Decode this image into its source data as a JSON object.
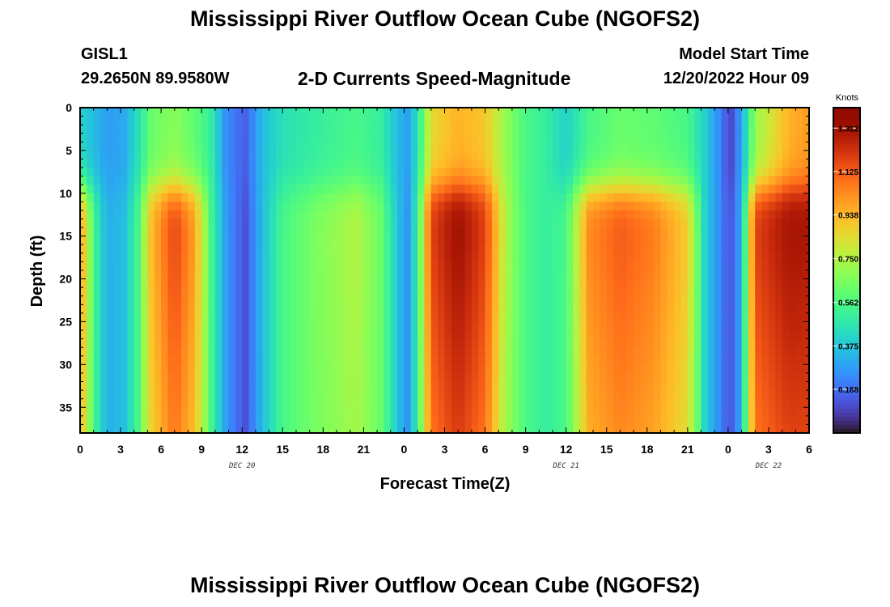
{
  "header": {
    "title": "Mississippi River Outflow Ocean Cube (NGOFS2)",
    "station": "GISL1",
    "location": "29.2650N  89.9580W",
    "subtitle": "2-D Currents Speed-Magnitude",
    "model_start_label": "Model Start Time",
    "model_start_time": "12/20/2022 Hour 09"
  },
  "footer": {
    "title": "Mississippi River Outflow Ocean Cube (NGOFS2)"
  },
  "chart_data": {
    "type": "heatmap",
    "xlabel": "Forecast Time(Z)",
    "ylabel": "Depth (ft)",
    "x_unit": "forecast hour (Z)",
    "xlim": [
      0,
      54
    ],
    "ylim": [
      38,
      0
    ],
    "x_ticks": [
      {
        "x": 0,
        "label": "0"
      },
      {
        "x": 3,
        "label": "3"
      },
      {
        "x": 6,
        "label": "6"
      },
      {
        "x": 9,
        "label": "9"
      },
      {
        "x": 12,
        "label": "12"
      },
      {
        "x": 15,
        "label": "15"
      },
      {
        "x": 18,
        "label": "18"
      },
      {
        "x": 21,
        "label": "21"
      },
      {
        "x": 24,
        "label": "0"
      },
      {
        "x": 27,
        "label": "3"
      },
      {
        "x": 30,
        "label": "6"
      },
      {
        "x": 33,
        "label": "9"
      },
      {
        "x": 36,
        "label": "12"
      },
      {
        "x": 39,
        "label": "15"
      },
      {
        "x": 42,
        "label": "18"
      },
      {
        "x": 45,
        "label": "21"
      },
      {
        "x": 48,
        "label": "0"
      },
      {
        "x": 51,
        "label": "3"
      },
      {
        "x": 54,
        "label": "6"
      }
    ],
    "date_labels": [
      {
        "x": 12,
        "label": "DEC 20"
      },
      {
        "x": 36,
        "label": "DEC 21"
      },
      {
        "x": 51,
        "label": "DEC 22"
      }
    ],
    "y_ticks": [
      0,
      5,
      10,
      15,
      20,
      25,
      30,
      35
    ],
    "colorbar": {
      "unit": "Knots",
      "range": [
        0.0,
        1.4
      ],
      "ticks": [
        1.312,
        1.125,
        0.938,
        0.75,
        0.562,
        0.375,
        0.188
      ],
      "tick_labels": [
        "1.312",
        "1.125",
        "0.938",
        "0.750",
        "0.562",
        "0.375",
        "0.188"
      ],
      "colormap": "turbo"
    },
    "speed_field": {
      "description_units": "knots",
      "time_columns": [
        {
          "x": 0.2,
          "surface": 0.4,
          "deep": 0.95
        },
        {
          "x": 1.0,
          "surface": 0.35,
          "deep": 0.55
        },
        {
          "x": 2.0,
          "surface": 0.28,
          "deep": 0.32
        },
        {
          "x": 3.2,
          "surface": 0.3,
          "deep": 0.35
        },
        {
          "x": 4.3,
          "surface": 0.45,
          "deep": 0.55
        },
        {
          "x": 5.3,
          "surface": 0.62,
          "deep": 0.95
        },
        {
          "x": 7.0,
          "surface": 0.68,
          "deep": 1.2
        },
        {
          "x": 8.5,
          "surface": 0.6,
          "deep": 1.0
        },
        {
          "x": 9.7,
          "surface": 0.5,
          "deep": 0.55
        },
        {
          "x": 10.8,
          "surface": 0.25,
          "deep": 0.28
        },
        {
          "x": 12.2,
          "surface": 0.15,
          "deep": 0.12
        },
        {
          "x": 13.5,
          "surface": 0.35,
          "deep": 0.35
        },
        {
          "x": 15.0,
          "surface": 0.45,
          "deep": 0.55
        },
        {
          "x": 17.5,
          "surface": 0.5,
          "deep": 0.66
        },
        {
          "x": 20.5,
          "surface": 0.55,
          "deep": 0.76
        },
        {
          "x": 22.3,
          "surface": 0.5,
          "deep": 0.62
        },
        {
          "x": 23.5,
          "surface": 0.35,
          "deep": 0.38
        },
        {
          "x": 24.2,
          "surface": 0.28,
          "deep": 0.25
        },
        {
          "x": 25.0,
          "surface": 0.45,
          "deep": 0.5
        },
        {
          "x": 26.0,
          "surface": 0.85,
          "deep": 1.2
        },
        {
          "x": 28.0,
          "surface": 0.95,
          "deep": 1.35
        },
        {
          "x": 30.0,
          "surface": 0.9,
          "deep": 1.2
        },
        {
          "x": 31.5,
          "surface": 0.7,
          "deep": 0.75
        },
        {
          "x": 33.0,
          "surface": 0.55,
          "deep": 0.55
        },
        {
          "x": 34.5,
          "surface": 0.5,
          "deep": 0.5
        },
        {
          "x": 36.0,
          "surface": 0.4,
          "deep": 0.55
        },
        {
          "x": 37.7,
          "surface": 0.55,
          "deep": 1.05
        },
        {
          "x": 40.0,
          "surface": 0.62,
          "deep": 1.15
        },
        {
          "x": 42.5,
          "surface": 0.6,
          "deep": 1.08
        },
        {
          "x": 45.0,
          "surface": 0.55,
          "deep": 0.9
        },
        {
          "x": 46.3,
          "surface": 0.4,
          "deep": 0.4
        },
        {
          "x": 47.5,
          "surface": 0.22,
          "deep": 0.22
        },
        {
          "x": 48.1,
          "surface": 0.08,
          "deep": 0.12
        },
        {
          "x": 49.0,
          "surface": 0.3,
          "deep": 0.32
        },
        {
          "x": 50.0,
          "surface": 0.7,
          "deep": 1.2
        },
        {
          "x": 52.5,
          "surface": 0.95,
          "deep": 1.33
        },
        {
          "x": 54.0,
          "surface": 1.0,
          "deep": 1.32
        }
      ]
    }
  }
}
